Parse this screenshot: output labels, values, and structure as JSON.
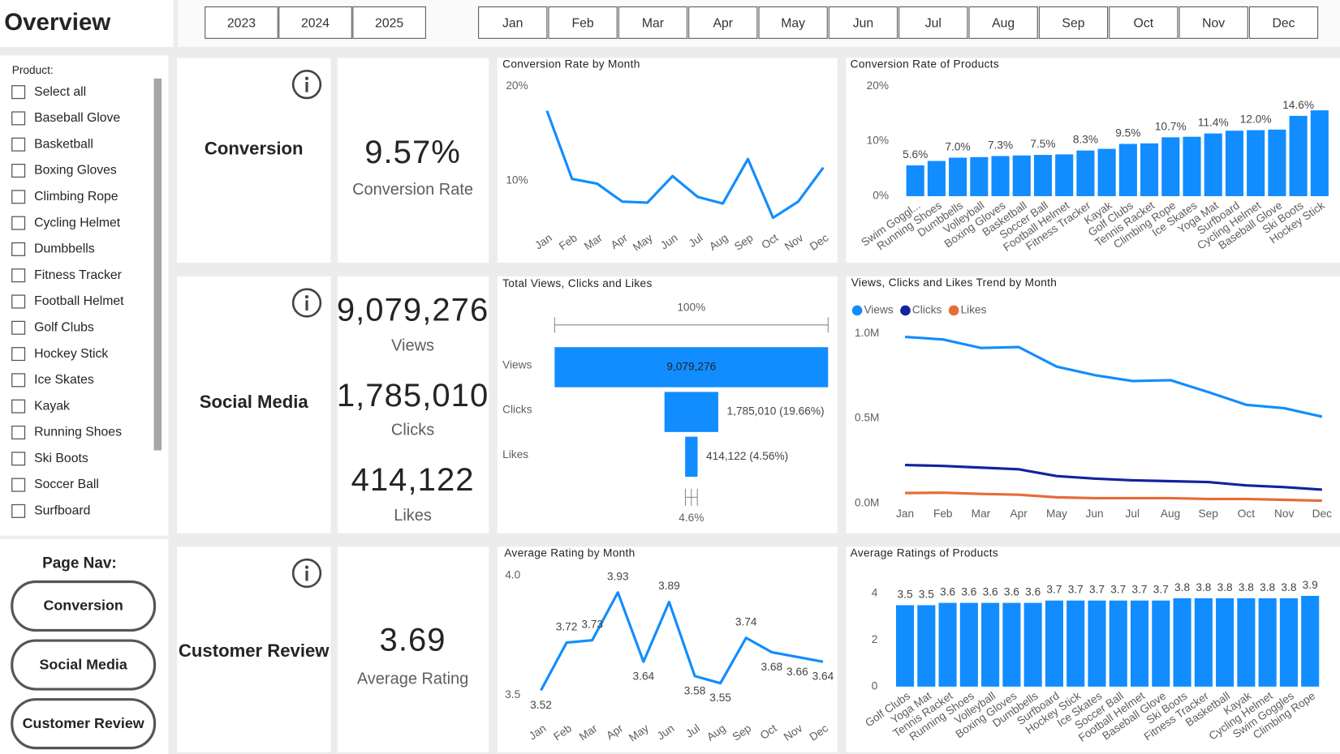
{
  "header": {
    "title": "Overview",
    "years": [
      "2023",
      "2024",
      "2025"
    ],
    "months": [
      "Jan",
      "Feb",
      "Mar",
      "Apr",
      "May",
      "Jun",
      "Jul",
      "Aug",
      "Sep",
      "Oct",
      "Nov",
      "Dec"
    ]
  },
  "slicer": {
    "label": "Product:",
    "items": [
      "Select all",
      "Baseball Glove",
      "Basketball",
      "Boxing Gloves",
      "Climbing Rope",
      "Cycling Helmet",
      "Dumbbells",
      "Fitness Tracker",
      "Football Helmet",
      "Golf Clubs",
      "Hockey Stick",
      "Ice Skates",
      "Kayak",
      "Running Shoes",
      "Ski Boots",
      "Soccer Ball",
      "Surfboard"
    ]
  },
  "nav": {
    "title": "Page Nav:",
    "buttons": [
      "Conversion",
      "Social Media",
      "Customer Review"
    ]
  },
  "kpis": [
    {
      "title": "Conversion",
      "items": [
        {
          "value": "9.57%",
          "label": "Conversion Rate"
        }
      ]
    },
    {
      "title": "Social Media",
      "items": [
        {
          "value": "9,079,276",
          "label": "Views"
        },
        {
          "value": "1,785,010",
          "label": "Clicks"
        },
        {
          "value": "414,122",
          "label": "Likes"
        }
      ]
    },
    {
      "title": "Customer Review",
      "items": [
        {
          "value": "3.69",
          "label": "Average Rating"
        }
      ]
    }
  ],
  "chart_data": [
    {
      "type": "line",
      "title": "Conversion Rate by Month",
      "categories": [
        "Jan",
        "Feb",
        "Mar",
        "Apr",
        "May",
        "Jun",
        "Jul",
        "Aug",
        "Sep",
        "Oct",
        "Nov",
        "Dec"
      ],
      "values": [
        17.4,
        10.2,
        9.7,
        7.8,
        7.7,
        10.5,
        8.3,
        7.6,
        12.3,
        6.1,
        7.8,
        11.4
      ],
      "color": "#118DFF",
      "ylim": [
        5,
        20
      ],
      "yticks": [
        {
          "value": 10,
          "label": "10%"
        },
        {
          "value": 20,
          "label": "20%"
        }
      ],
      "grid": false
    },
    {
      "type": "bar",
      "title": "Conversion Rate of Products",
      "categories": [
        "Swim Goggl...",
        "Running Shoes",
        "Dumbbells",
        "Volleyball",
        "Boxing Gloves",
        "Basketball",
        "Soccer Ball",
        "Football Helmet",
        "Fitness Tracker",
        "Kayak",
        "Golf Clubs",
        "Tennis Racket",
        "Climbing Rope",
        "Ice Skates",
        "Yoga Mat",
        "Surfboard",
        "Cycling Helmet",
        "Baseball Glove",
        "Ski Boots",
        "Hockey Stick"
      ],
      "values": [
        5.6,
        6.4,
        7.0,
        7.1,
        7.3,
        7.4,
        7.5,
        7.6,
        8.3,
        8.6,
        9.5,
        9.6,
        10.7,
        10.8,
        11.4,
        11.9,
        12.0,
        12.1,
        14.6,
        15.6
      ],
      "value_labels": [
        "5.6%",
        null,
        "7.0%",
        null,
        "7.3%",
        null,
        "7.5%",
        null,
        "8.3%",
        null,
        "9.5%",
        null,
        "10.7%",
        null,
        "11.4%",
        null,
        "12.0%",
        null,
        "14.6%",
        null
      ],
      "color": "#118DFF",
      "ylim": [
        0,
        20
      ],
      "yticks": [
        {
          "value": 0,
          "label": "0%"
        },
        {
          "value": 10,
          "label": "10%"
        },
        {
          "value": 20,
          "label": "20%"
        }
      ],
      "grid": false
    },
    {
      "type": "funnel",
      "title": "Total Views, Clicks and Likes",
      "categories": [
        "Views",
        "Clicks",
        "Likes"
      ],
      "values": [
        9079276,
        1785010,
        414122
      ],
      "value_labels": [
        "9,079,276",
        "1,785,010 (19.66%)",
        "414,122 (4.56%)"
      ],
      "top_label": "100%",
      "bottom_label": "4.6%",
      "color": "#118DFF"
    },
    {
      "type": "line",
      "title": "Views, Clicks and Likes Trend by Month",
      "categories": [
        "Jan",
        "Feb",
        "Mar",
        "Apr",
        "May",
        "Jun",
        "Jul",
        "Aug",
        "Sep",
        "Oct",
        "Nov",
        "Dec"
      ],
      "series": [
        {
          "name": "Views",
          "color": "#118DFF",
          "values": [
            980000,
            965000,
            915000,
            920000,
            805000,
            755000,
            720000,
            725000,
            655000,
            580000,
            560000,
            510000
          ]
        },
        {
          "name": "Clicks",
          "color": "#12239E",
          "values": [
            225000,
            220000,
            210000,
            200000,
            160000,
            145000,
            135000,
            130000,
            125000,
            105000,
            95000,
            80000
          ]
        },
        {
          "name": "Likes",
          "color": "#E66C37",
          "values": [
            60000,
            62000,
            55000,
            50000,
            35000,
            30000,
            30000,
            30000,
            25000,
            25000,
            20000,
            15000
          ]
        }
      ],
      "ylim": [
        0,
        1000000
      ],
      "yticks": [
        {
          "value": 0,
          "label": "0.0M"
        },
        {
          "value": 500000,
          "label": "0.5M"
        },
        {
          "value": 1000000,
          "label": "1.0M"
        }
      ],
      "legend": "top-left",
      "grid": false
    },
    {
      "type": "line",
      "title": "Average Rating by Month",
      "categories": [
        "Jan",
        "Feb",
        "Mar",
        "Apr",
        "May",
        "Jun",
        "Jul",
        "Aug",
        "Sep",
        "Oct",
        "Nov",
        "Dec"
      ],
      "values": [
        3.52,
        3.72,
        3.73,
        3.93,
        3.64,
        3.89,
        3.58,
        3.55,
        3.74,
        3.68,
        3.66,
        3.64
      ],
      "color": "#118DFF",
      "data_labels": true,
      "ylim": [
        3.5,
        4
      ],
      "yticks": [
        3.5,
        {
          "value": 4,
          "label": "4.0"
        }
      ],
      "grid": false
    },
    {
      "type": "bar",
      "title": "Average Ratings of Products",
      "categories": [
        "Golf Clubs",
        "Yoga Mat",
        "Tennis Racket",
        "Running Shoes",
        "Volleyball",
        "Boxing Gloves",
        "Dumbbells",
        "Surfboard",
        "Hockey Stick",
        "Ice Skates",
        "Soccer Ball",
        "Football Helmet",
        "Baseball Glove",
        "Ski Boots",
        "Fitness Tracker",
        "Basketball",
        "Kayak",
        "Cycling Helmet",
        "Swim Goggles",
        "Climbing Rope"
      ],
      "values": [
        3.5,
        3.5,
        3.6,
        3.6,
        3.6,
        3.6,
        3.6,
        3.7,
        3.7,
        3.7,
        3.7,
        3.7,
        3.7,
        3.8,
        3.8,
        3.8,
        3.8,
        3.8,
        3.8,
        3.9
      ],
      "color": "#118DFF",
      "data_labels": true,
      "ylim": [
        0,
        4.4
      ],
      "yticks": [
        0,
        2,
        4
      ],
      "grid": false
    }
  ]
}
